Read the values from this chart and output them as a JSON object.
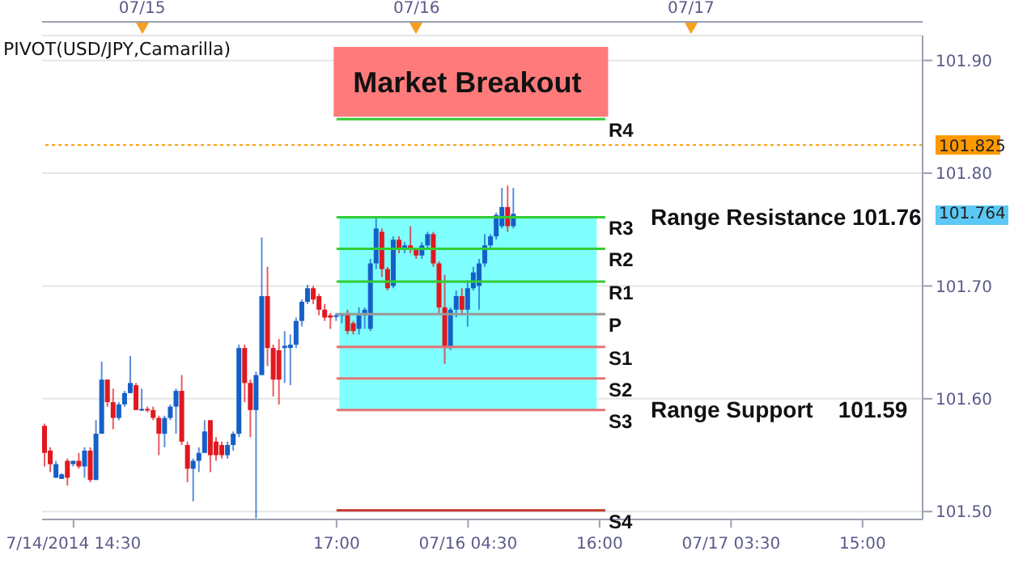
{
  "chart_data": {
    "type": "candlestick",
    "categories": [
      null,
      null,
      null,
      null,
      null,
      "7/14/2014 14:30",
      null,
      null,
      null,
      null,
      null,
      null,
      null,
      null,
      null,
      null,
      null,
      null,
      null,
      null,
      null,
      null,
      null,
      null,
      null,
      null,
      null,
      null,
      null,
      null,
      null,
      null,
      null,
      null,
      null,
      null,
      null,
      null,
      null,
      null,
      null,
      null,
      null,
      null,
      null,
      null,
      null,
      null,
      null,
      null,
      null,
      "17:00",
      null,
      null,
      null,
      null,
      null,
      null,
      null,
      null,
      null,
      null,
      null,
      null,
      null,
      null,
      null,
      null,
      null,
      null,
      null,
      null,
      null,
      null,
      "07/16 04:30",
      null,
      null,
      null,
      null,
      null,
      null,
      null,
      null,
      null,
      null,
      null,
      null,
      null,
      null,
      null,
      null,
      null,
      null,
      null,
      null,
      null,
      null,
      "16:00",
      null,
      null,
      null,
      null,
      null,
      null,
      null,
      null,
      null,
      null,
      null,
      null,
      null,
      null,
      null,
      null,
      null,
      null,
      null,
      null,
      null,
      null,
      "07/17 03:30",
      null,
      null,
      null,
      null,
      null,
      null,
      null,
      null,
      null,
      null,
      null,
      null,
      null,
      null,
      null,
      null,
      null,
      null,
      null,
      null,
      null,
      null,
      "15:00",
      null,
      null,
      null,
      null,
      null,
      null,
      null,
      null,
      null,
      null
    ],
    "ohlc": [
      [
        101.576,
        101.578,
        101.54,
        101.552
      ],
      [
        101.554,
        101.557,
        101.535,
        101.542
      ],
      [
        101.53,
        101.545,
        101.53,
        101.542
      ],
      [
        101.529,
        101.534,
        101.529,
        101.533
      ],
      [
        101.545,
        101.547,
        101.523,
        101.53
      ],
      [
        101.542,
        101.545,
        101.54,
        101.545
      ],
      [
        101.545,
        101.552,
        101.538,
        101.54
      ],
      [
        101.54,
        101.557,
        101.53,
        101.554
      ],
      [
        101.554,
        101.557,
        101.526,
        101.528
      ],
      [
        101.528,
        101.581,
        101.528,
        101.569
      ],
      [
        101.569,
        101.633,
        101.569,
        101.617
      ],
      [
        101.617,
        101.617,
        101.593,
        101.597
      ],
      [
        101.597,
        101.609,
        101.573,
        101.583
      ],
      [
        101.583,
        101.597,
        101.581,
        101.595
      ],
      [
        101.595,
        101.607,
        101.593,
        101.605
      ],
      [
        101.605,
        101.638,
        101.605,
        101.614
      ],
      [
        101.612,
        101.614,
        101.59,
        101.59
      ],
      [
        101.59,
        101.609,
        101.589,
        101.591
      ],
      [
        101.591,
        101.593,
        101.588,
        101.59
      ],
      [
        101.59,
        101.593,
        101.581,
        101.583
      ],
      [
        101.583,
        101.585,
        101.55,
        101.569
      ],
      [
        101.569,
        101.585,
        101.557,
        101.583
      ],
      [
        101.583,
        101.595,
        101.581,
        101.593
      ],
      [
        101.593,
        101.609,
        101.569,
        101.607
      ],
      [
        101.607,
        101.621,
        101.559,
        101.562
      ],
      [
        101.559,
        101.562,
        101.526,
        101.538
      ],
      [
        101.538,
        101.547,
        101.509,
        101.545
      ],
      [
        101.545,
        101.557,
        101.535,
        101.552
      ],
      [
        101.552,
        101.581,
        101.552,
        101.571
      ],
      [
        101.581,
        101.581,
        101.535,
        101.55
      ],
      [
        101.562,
        101.566,
        101.545,
        101.55
      ],
      [
        101.559,
        101.562,
        101.547,
        101.55
      ],
      [
        101.55,
        101.562,
        101.547,
        101.559
      ],
      [
        101.559,
        101.571,
        101.554,
        101.569
      ],
      [
        101.569,
        101.648,
        101.566,
        101.645
      ],
      [
        101.645,
        101.648,
        101.597,
        101.614
      ],
      [
        101.614,
        101.617,
        101.566,
        101.59
      ],
      [
        101.59,
        101.624,
        101.494,
        101.621
      ],
      [
        101.621,
        101.743,
        101.621,
        101.691
      ],
      [
        101.691,
        101.717,
        101.629,
        101.645
      ],
      [
        101.645,
        101.648,
        101.602,
        101.617
      ],
      [
        101.643,
        101.653,
        101.595,
        101.617
      ],
      [
        101.645,
        101.66,
        101.614,
        101.647
      ],
      [
        101.645,
        101.657,
        101.612,
        101.648
      ],
      [
        101.648,
        101.672,
        101.645,
        101.669
      ],
      [
        101.669,
        101.688,
        101.664,
        101.686
      ],
      [
        101.686,
        101.701,
        101.684,
        101.698
      ],
      [
        101.698,
        101.7,
        101.684,
        101.688
      ],
      [
        101.691,
        101.693,
        101.674,
        101.679
      ],
      [
        101.679,
        101.684,
        101.669,
        101.672
      ],
      [
        101.674,
        101.676,
        101.662,
        101.672
      ],
      [
        101.673,
        101.676,
        101.669,
        101.674
      ],
      [
        101.674,
        101.676,
        101.667,
        101.675
      ],
      [
        101.676,
        101.679,
        101.657,
        101.66
      ],
      [
        101.667,
        101.669,
        101.657,
        101.66
      ],
      [
        101.662,
        101.681,
        101.657,
        101.674
      ],
      [
        101.674,
        101.681,
        101.662,
        101.679
      ],
      [
        101.662,
        101.724,
        101.66,
        101.72
      ],
      [
        101.72,
        101.76,
        101.715,
        101.751
      ],
      [
        101.748,
        101.751,
        101.708,
        101.715
      ],
      [
        101.715,
        101.717,
        101.696,
        101.698
      ],
      [
        101.7,
        101.744,
        101.698,
        101.741
      ],
      [
        101.741,
        101.744,
        101.729,
        101.732
      ],
      [
        101.732,
        101.739,
        101.729,
        101.736
      ],
      [
        101.736,
        101.753,
        101.729,
        101.732
      ],
      [
        101.732,
        101.734,
        101.724,
        101.727
      ],
      [
        101.727,
        101.739,
        101.724,
        101.736
      ],
      [
        101.736,
        101.748,
        101.734,
        101.746
      ],
      [
        101.746,
        101.748,
        101.717,
        101.72
      ],
      [
        101.72,
        101.722,
        101.676,
        101.681
      ],
      [
        101.681,
        101.71,
        101.631,
        101.645
      ],
      [
        101.645,
        101.681,
        101.643,
        101.679
      ],
      [
        101.679,
        101.696,
        101.672,
        101.691
      ],
      [
        101.691,
        101.698,
        101.674,
        101.679
      ],
      [
        101.679,
        101.705,
        101.664,
        101.698
      ],
      [
        101.698,
        101.717,
        101.696,
        101.712
      ],
      [
        101.7,
        101.724,
        101.679,
        101.72
      ],
      [
        101.72,
        101.746,
        101.717,
        101.736
      ],
      [
        101.736,
        101.746,
        101.734,
        101.744
      ],
      [
        101.744,
        101.765,
        101.741,
        101.763
      ],
      [
        101.753,
        101.787,
        101.751,
        101.77
      ],
      [
        101.77,
        101.789,
        101.748,
        101.753
      ],
      [
        101.753,
        101.787,
        101.751,
        101.764
      ],
      null,
      null,
      null,
      null,
      null,
      null,
      null,
      null,
      null,
      null,
      null,
      null,
      null,
      null,
      null,
      null,
      null,
      null,
      null,
      null,
      null,
      null,
      null,
      null,
      null,
      null,
      null,
      null,
      null,
      null,
      null,
      null,
      null,
      null,
      null,
      null,
      null,
      null,
      null,
      null,
      null,
      null,
      null,
      null,
      null,
      null,
      null,
      null,
      null,
      null,
      null,
      null,
      null,
      null,
      null,
      null,
      null,
      null,
      null,
      null,
      null,
      null,
      null,
      null,
      null,
      null,
      null,
      null,
      null,
      null,
      null
    ],
    "colors": [
      "#e01820",
      "#e01820",
      "#1560c8",
      "#1560c8",
      "#e01820",
      "#1560c8",
      "#e01820",
      "#1560c8",
      "#e01820",
      "#1560c8",
      "#1560c8",
      "#e01820",
      "#e01820",
      "#1560c8",
      "#1560c8",
      "#1560c8",
      "#e01820",
      "#1560c8",
      "#e01820",
      "#e01820",
      "#e01820",
      "#1560c8",
      "#1560c8",
      "#1560c8",
      "#e01820",
      "#e01820",
      "#1560c8",
      "#1560c8",
      "#1560c8",
      "#e01820",
      "#e01820",
      "#e01820",
      "#1560c8",
      "#1560c8",
      "#1560c8",
      "#e01820",
      "#e01820",
      "#1560c8",
      "#1560c8",
      "#e01820",
      "#e01820",
      "#e01820",
      "#1560c8",
      "#1560c8",
      "#1560c8",
      "#1560c8",
      "#1560c8",
      "#e01820",
      "#e01820",
      "#e01820",
      "#e01820",
      "#1560c8",
      "#1560c8",
      "#e01820",
      "#e01820",
      "#1560c8",
      "#1560c8",
      "#1560c8",
      "#1560c8",
      "#e01820",
      "#e01820",
      "#1560c8",
      "#e01820",
      "#1560c8",
      "#e01820",
      "#e01820",
      "#1560c8",
      "#1560c8",
      "#e01820",
      "#e01820",
      "#e01820",
      "#1560c8",
      "#1560c8",
      "#e01820",
      "#1560c8",
      "#1560c8",
      "#1560c8",
      "#1560c8",
      "#1560c8",
      "#1560c8",
      "#1560c8",
      "#e01820",
      "#1560c8",
      null,
      null,
      null,
      null,
      null,
      null,
      null,
      null,
      null,
      null,
      null,
      null,
      null,
      null,
      null,
      null,
      null,
      null,
      null,
      null,
      null,
      null,
      null,
      null,
      null,
      null,
      null,
      null,
      null,
      null,
      null,
      null,
      null,
      null,
      null,
      null,
      null,
      null,
      null,
      null,
      null,
      null,
      null,
      null,
      null,
      null,
      null,
      null,
      null,
      null,
      null,
      null,
      null,
      null,
      null,
      null,
      null,
      null,
      null,
      null,
      null,
      null,
      null,
      null,
      null,
      null,
      null,
      null,
      null,
      null,
      null
    ],
    "ylim": [
      101.493,
      101.922
    ],
    "yticks": [
      {
        "value": 101.5,
        "label": "101.50"
      },
      {
        "value": 101.6,
        "label": "101.60"
      },
      {
        "value": 101.7,
        "label": "101.70"
      },
      {
        "value": 101.8,
        "label": "101.80"
      },
      {
        "value": 101.9,
        "label": "101.90"
      }
    ],
    "grid": true,
    "bands": [
      {
        "axis": "y",
        "from": 101.85,
        "to": 101.912,
        "label": "Market Breakout",
        "color": "#ff7b7b"
      },
      {
        "axis": "y",
        "from": 101.59,
        "to": 101.761,
        "color": "#80ffff"
      }
    ],
    "ref_lines": [
      {
        "axis": "y",
        "value": 101.848,
        "label": "R4",
        "color": "#33cc33"
      },
      {
        "axis": "y",
        "value": 101.761,
        "label": "R3",
        "color": "#33cc33"
      },
      {
        "axis": "y",
        "value": 101.733,
        "label": "R2",
        "color": "#33cc33"
      },
      {
        "axis": "y",
        "value": 101.704,
        "label": "R1",
        "color": "#33cc33"
      },
      {
        "axis": "y",
        "value": 101.675,
        "label": "P",
        "color": "#999999"
      },
      {
        "axis": "y",
        "value": 101.646,
        "label": "S1",
        "color": "#e57373"
      },
      {
        "axis": "y",
        "value": 101.618,
        "label": "S2",
        "color": "#e57373"
      },
      {
        "axis": "y",
        "value": 101.59,
        "label": "S3",
        "color": "#e57373"
      },
      {
        "axis": "y",
        "value": 101.501,
        "label": "S4",
        "color": "#c0392b"
      },
      {
        "axis": "y",
        "value": 101.825,
        "label": "101.825",
        "color": "#ff9900",
        "line_style": "dotted"
      }
    ],
    "annotations": [
      "PIVOT(USD/JPY,Camarilla)",
      "Range Resistance 101.76",
      "Range Support    101.59",
      "07/15",
      "07/16",
      "07/17",
      "101.764"
    ]
  }
}
